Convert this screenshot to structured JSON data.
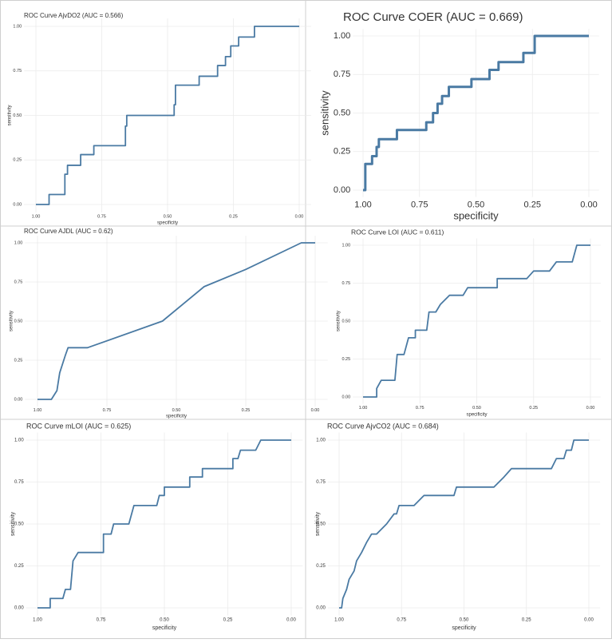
{
  "chart_data": [
    {
      "type": "line",
      "title": "ROC Curve AjvDO2 (AUC = 0.566)",
      "x_label": "specificity",
      "y_label": "sensitivity",
      "color": "#4a7aa3",
      "x": [
        1,
        0.95,
        0.95,
        0.89,
        0.89,
        0.88,
        0.88,
        0.83,
        0.83,
        0.78,
        0.78,
        0.66,
        0.66,
        0.655,
        0.655,
        0.475,
        0.475,
        0.47,
        0.47,
        0.38,
        0.38,
        0.31,
        0.31,
        0.28,
        0.28,
        0.26,
        0.26,
        0.23,
        0.23,
        0.17,
        0.17,
        0
      ],
      "values": [
        0,
        0,
        0.056,
        0.056,
        0.17,
        0.17,
        0.22,
        0.22,
        0.28,
        0.28,
        0.33,
        0.33,
        0.44,
        0.44,
        0.5,
        0.5,
        0.56,
        0.56,
        0.67,
        0.67,
        0.72,
        0.72,
        0.78,
        0.78,
        0.83,
        0.83,
        0.89,
        0.89,
        0.94,
        0.94,
        1,
        1
      ],
      "xlim": [
        1,
        0
      ],
      "ylim": [
        0,
        1
      ],
      "xticks": [
        {
          "value": 1,
          "label": "1.00"
        },
        0.75,
        {
          "value": 0.5,
          "label": "0.50"
        },
        0.25,
        {
          "value": 0,
          "label": "0.00"
        }
      ],
      "yticks": [
        {
          "value": 0,
          "label": "0.00"
        },
        0.25,
        {
          "value": 0.5,
          "label": "0.50"
        },
        0.75,
        {
          "value": 1,
          "label": "1.00"
        }
      ],
      "grid": true
    },
    {
      "type": "line",
      "title": "ROC Curve COER (AUC = 0.669)",
      "x_label": "specificity",
      "y_label": "sensitivity",
      "color": "#4a7aa3",
      "x": [
        1,
        0.99,
        0.99,
        0.96,
        0.96,
        0.94,
        0.94,
        0.93,
        0.93,
        0.85,
        0.85,
        0.72,
        0.72,
        0.69,
        0.69,
        0.67,
        0.67,
        0.65,
        0.65,
        0.62,
        0.62,
        0.52,
        0.52,
        0.44,
        0.44,
        0.4,
        0.4,
        0.29,
        0.29,
        0.24,
        0.24,
        0
      ],
      "values": [
        0,
        0,
        0.17,
        0.17,
        0.22,
        0.22,
        0.28,
        0.28,
        0.33,
        0.33,
        0.39,
        0.39,
        0.44,
        0.44,
        0.5,
        0.5,
        0.56,
        0.56,
        0.61,
        0.61,
        0.67,
        0.67,
        0.72,
        0.72,
        0.78,
        0.78,
        0.83,
        0.83,
        0.89,
        0.89,
        1,
        1
      ],
      "xlim": [
        1,
        0
      ],
      "ylim": [
        0,
        1
      ],
      "xticks": [
        {
          "value": 1,
          "label": "1.00"
        },
        0.75,
        {
          "value": 0.5,
          "label": "0.50"
        },
        0.25,
        {
          "value": 0,
          "label": "0.00"
        }
      ],
      "yticks": [
        {
          "value": 0,
          "label": "0.00"
        },
        0.25,
        {
          "value": 0.5,
          "label": "0.50"
        },
        0.75,
        {
          "value": 1,
          "label": "1.00"
        }
      ],
      "grid": true
    },
    {
      "type": "line",
      "title": "ROC Curve AJDL (AUC = 0.62)",
      "x_label": "specificity",
      "y_label": "sensitivity",
      "color": "#4a7aa3",
      "x": [
        1,
        0.95,
        0.93,
        0.92,
        0.9,
        0.89,
        0.82,
        0.55,
        0.4,
        0.25,
        0.05,
        0
      ],
      "values": [
        0,
        0,
        0.056,
        0.17,
        0.28,
        0.33,
        0.33,
        0.5,
        0.72,
        0.83,
        1,
        1
      ],
      "xlim": [
        1,
        0
      ],
      "ylim": [
        0,
        1
      ],
      "xticks": [
        {
          "value": 1,
          "label": "1.00"
        },
        0.75,
        {
          "value": 0.5,
          "label": "0.50"
        },
        0.25,
        {
          "value": 0,
          "label": "0.00"
        }
      ],
      "yticks": [
        {
          "value": 0,
          "label": "0.00"
        },
        0.25,
        {
          "value": 0.5,
          "label": "0.50"
        },
        0.75,
        {
          "value": 1,
          "label": "1.00"
        }
      ],
      "grid": true
    },
    {
      "type": "line",
      "title": "ROC Curve LOI (AUC = 0.611)",
      "x_label": "specificity",
      "y_label": "sensitivity",
      "color": "#4a7aa3",
      "x": [
        1,
        0.94,
        0.94,
        0.92,
        0.86,
        0.85,
        0.82,
        0.8,
        0.77,
        0.77,
        0.72,
        0.71,
        0.68,
        0.66,
        0.62,
        0.56,
        0.54,
        0.41,
        0.41,
        0.28,
        0.25,
        0.18,
        0.15,
        0.08,
        0.06,
        0
      ],
      "values": [
        0,
        0,
        0.056,
        0.11,
        0.11,
        0.28,
        0.28,
        0.39,
        0.39,
        0.44,
        0.44,
        0.56,
        0.56,
        0.61,
        0.67,
        0.67,
        0.72,
        0.72,
        0.78,
        0.78,
        0.83,
        0.83,
        0.89,
        0.89,
        1,
        1
      ],
      "xlim": [
        1,
        0
      ],
      "ylim": [
        0,
        1
      ],
      "xticks": [
        {
          "value": 1,
          "label": "1.00"
        },
        0.75,
        {
          "value": 0.5,
          "label": "0.50"
        },
        0.25,
        {
          "value": 0,
          "label": "0.00"
        }
      ],
      "yticks": [
        {
          "value": 0,
          "label": "0.00"
        },
        0.25,
        {
          "value": 0.5,
          "label": "0.50"
        },
        0.75,
        {
          "value": 1,
          "label": "1.00"
        }
      ],
      "grid": true
    },
    {
      "type": "line",
      "title": "ROC Curve mLOI (AUC = 0.625)",
      "x_label": "specificity",
      "y_label": "sensitivity",
      "color": "#4a7aa3",
      "x": [
        1,
        0.95,
        0.95,
        0.9,
        0.89,
        0.87,
        0.86,
        0.84,
        0.74,
        0.74,
        0.71,
        0.7,
        0.64,
        0.62,
        0.53,
        0.52,
        0.5,
        0.5,
        0.4,
        0.4,
        0.35,
        0.35,
        0.23,
        0.23,
        0.21,
        0.2,
        0.14,
        0.12,
        0
      ],
      "values": [
        0,
        0,
        0.056,
        0.056,
        0.11,
        0.11,
        0.28,
        0.33,
        0.33,
        0.44,
        0.44,
        0.5,
        0.5,
        0.61,
        0.61,
        0.67,
        0.67,
        0.72,
        0.72,
        0.78,
        0.78,
        0.83,
        0.83,
        0.89,
        0.89,
        0.94,
        0.94,
        1,
        1
      ],
      "xlim": [
        1,
        0
      ],
      "ylim": [
        0,
        1
      ],
      "xticks": [
        {
          "value": 1,
          "label": "1.00"
        },
        0.75,
        {
          "value": 0.5,
          "label": "0.50"
        },
        0.25,
        {
          "value": 0,
          "label": "0.00"
        }
      ],
      "yticks": [
        {
          "value": 0,
          "label": "0.00"
        },
        0.25,
        {
          "value": 0.5,
          "label": "0.50"
        },
        0.75,
        {
          "value": 1,
          "label": "1.00"
        }
      ],
      "grid": true
    },
    {
      "type": "line",
      "title": "ROC Curve AjvCO2 (AUC = 0.684)",
      "x_label": "specificity",
      "y_label": "sensitivity",
      "color": "#4a7aa3",
      "x": [
        1,
        0.99,
        0.985,
        0.97,
        0.96,
        0.94,
        0.93,
        0.91,
        0.89,
        0.87,
        0.85,
        0.81,
        0.78,
        0.77,
        0.76,
        0.7,
        0.66,
        0.54,
        0.53,
        0.38,
        0.34,
        0.31,
        0.15,
        0.13,
        0.1,
        0.09,
        0.07,
        0.06,
        0
      ],
      "values": [
        0,
        0,
        0.056,
        0.11,
        0.17,
        0.22,
        0.28,
        0.33,
        0.39,
        0.44,
        0.44,
        0.5,
        0.56,
        0.56,
        0.61,
        0.61,
        0.67,
        0.67,
        0.72,
        0.72,
        0.78,
        0.83,
        0.83,
        0.89,
        0.89,
        0.94,
        0.94,
        1,
        1
      ],
      "xlim": [
        1,
        0
      ],
      "ylim": [
        0,
        1
      ],
      "xticks": [
        {
          "value": 1,
          "label": "1.00"
        },
        0.75,
        {
          "value": 0.5,
          "label": "0.50"
        },
        0.25,
        {
          "value": 0,
          "label": "0.00"
        }
      ],
      "yticks": [
        {
          "value": 0,
          "label": "0.00"
        },
        0.25,
        {
          "value": 0.5,
          "label": "0.50"
        },
        0.75,
        {
          "value": 1,
          "label": "1.00"
        }
      ],
      "grid": true
    }
  ]
}
